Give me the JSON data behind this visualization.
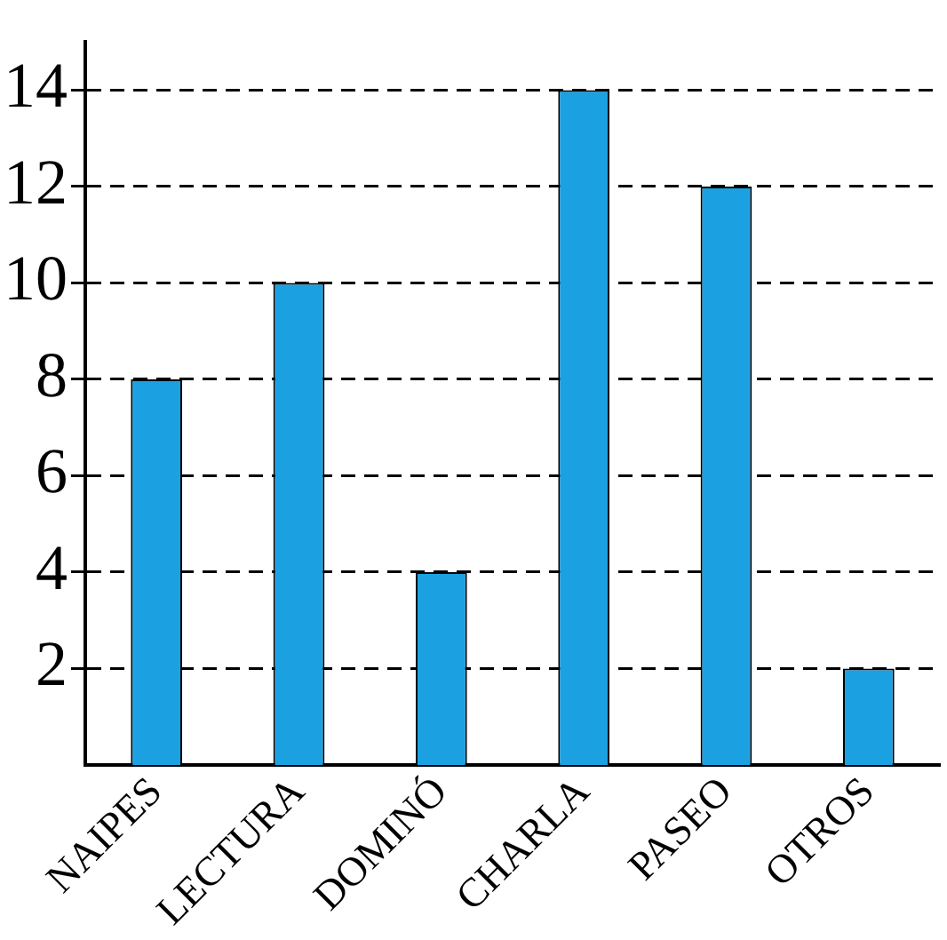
{
  "chart_data": {
    "type": "bar",
    "categories": [
      "NAIPES",
      "LECTURA",
      "DOMINÓ",
      "CHARLA",
      "PASEO",
      "OTROS"
    ],
    "values": [
      8,
      10,
      4,
      14,
      12,
      2
    ],
    "color": "#1ba1e2",
    "ylim": [
      0,
      15
    ],
    "yticks": [
      2,
      4,
      6,
      8,
      10,
      12,
      14
    ],
    "grid": "y",
    "legend": false
  }
}
